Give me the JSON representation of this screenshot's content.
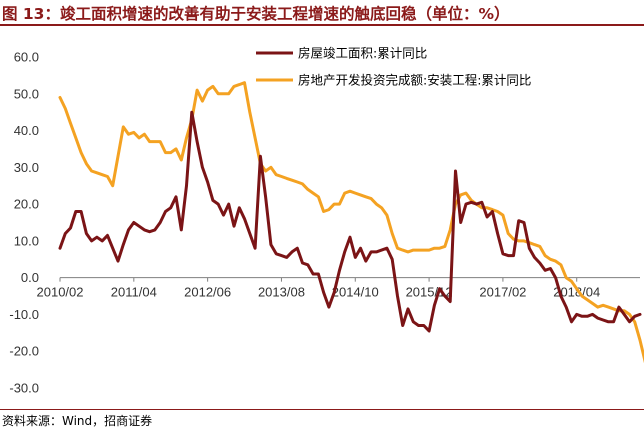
{
  "title": "图 13：竣工面积增速的改善有助于安装工程增速的触底回稳（单位：%）",
  "source": "资料来源：Wind，招商证券",
  "chart_data": {
    "type": "line",
    "title": "图 13：竣工面积增速的改善有助于安装工程增速的触底回稳（单位：%）",
    "xlabel": "",
    "ylabel": "",
    "ylim": [
      -30,
      60
    ],
    "yticks": [
      60,
      50,
      40,
      30,
      20,
      10,
      0,
      -10,
      -20,
      -30
    ],
    "ytick_labels": [
      "60.0",
      "50.0",
      "40.0",
      "30.0",
      "20.0",
      "10.0",
      "0.0",
      "-10.0",
      "-20.0",
      "-30.0"
    ],
    "xtick_labels": [
      "2010/02",
      "2011/04",
      "2012/06",
      "2013/08",
      "2014/10",
      "2015/12",
      "2017/02",
      "2018/04"
    ],
    "grid": false,
    "legend_position": "top-right",
    "x_start": "2010-02",
    "series": [
      {
        "name": "房屋竣工面积:累计同比",
        "color": "#7b1416",
        "values": [
          8,
          12,
          13.5,
          18,
          18,
          12,
          10,
          11,
          10,
          11.5,
          8,
          4.5,
          9,
          13,
          15,
          14,
          13,
          12.5,
          13,
          15,
          18,
          19,
          22,
          13,
          25,
          45,
          37,
          30,
          26,
          21,
          20,
          17,
          20,
          14,
          19,
          16,
          12,
          8,
          33,
          22,
          9,
          6.5,
          6,
          5.5,
          7,
          8,
          4,
          3.5,
          1,
          1,
          -4,
          -8,
          -4,
          2,
          7,
          11,
          5.5,
          8,
          4.5,
          7,
          7,
          7.5,
          8,
          5,
          -5,
          -13,
          -8.5,
          -12,
          -13,
          -13,
          -14.5,
          -7.5,
          -3,
          -5,
          -6.5,
          29,
          15,
          20,
          20.5,
          20,
          20.5,
          16.5,
          18,
          12,
          6.5,
          6,
          6,
          15.5,
          15,
          8,
          5.5,
          4,
          2,
          2.5,
          0,
          -5,
          -8,
          -12,
          -10,
          -10.5,
          -10.5,
          -10,
          -11,
          -11.5,
          -12,
          -12,
          -8,
          -10,
          -12,
          -10.5,
          -10
        ]
      },
      {
        "name": "房地产开发投资完成额:安装工程:累计同比",
        "color": "#f4a222",
        "values": [
          49,
          46,
          42,
          38,
          34,
          31,
          29,
          28.5,
          28,
          27.5,
          25,
          33,
          41,
          39,
          39.5,
          38,
          39,
          37,
          37,
          37,
          34,
          34,
          35,
          32,
          38,
          43,
          51,
          48,
          51,
          52,
          50,
          50,
          50,
          52,
          52.5,
          53,
          45,
          38,
          31,
          29,
          30,
          28,
          27.5,
          27,
          26.5,
          26,
          25.5,
          24,
          23,
          22,
          18,
          18.5,
          20,
          20,
          23,
          23.5,
          23,
          22.5,
          22,
          21.5,
          20,
          19,
          17,
          12,
          8,
          7.5,
          7,
          7.5,
          7.5,
          7.5,
          7.5,
          8,
          8,
          8.5,
          13,
          20,
          22.5,
          23,
          21,
          20,
          19,
          19,
          18.5,
          18,
          17,
          12,
          10.5,
          10,
          10,
          9.5,
          9,
          8.5,
          6,
          5,
          4.5,
          3.5,
          0,
          -1,
          -3,
          -5,
          -6,
          -7,
          -8,
          -7.5,
          -8,
          -8.5,
          -9,
          -9,
          -10,
          -12,
          -17,
          -23,
          -23
        ]
      }
    ]
  }
}
